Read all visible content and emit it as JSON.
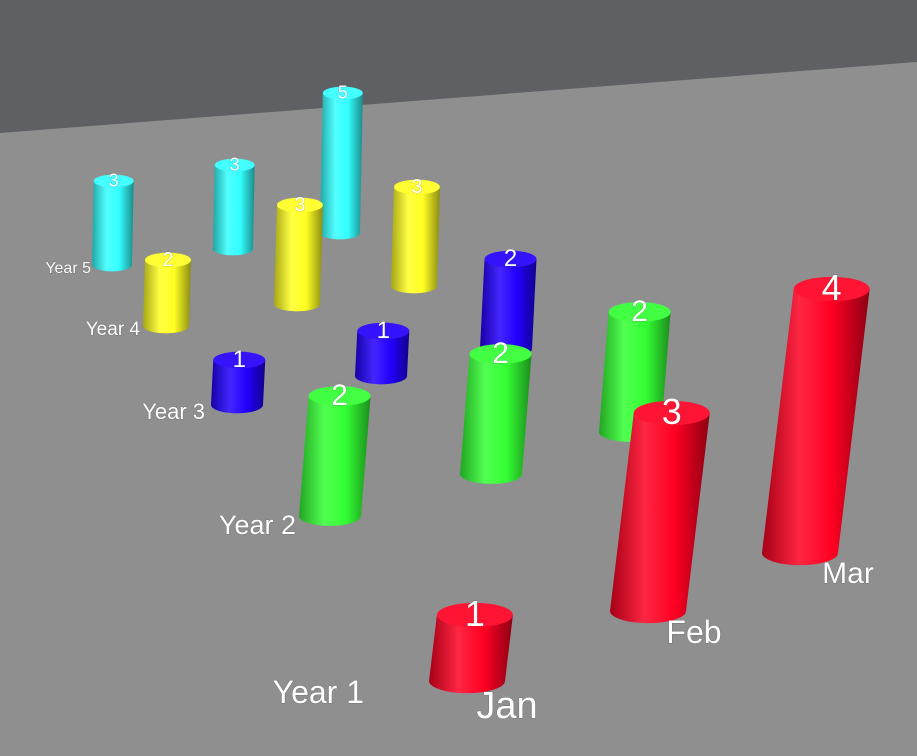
{
  "chart_data": {
    "type": "bar",
    "style": "3d-cylinder",
    "categories": [
      "Jan",
      "Feb",
      "Mar"
    ],
    "series": [
      {
        "name": "Year 1",
        "values": [
          1,
          3,
          4
        ],
        "color": "#ff0022"
      },
      {
        "name": "Year 2",
        "values": [
          2,
          2,
          2
        ],
        "color": "#33ff33"
      },
      {
        "name": "Year 3",
        "values": [
          1,
          1,
          2
        ],
        "color": "#2200ff"
      },
      {
        "name": "Year 4",
        "values": [
          2,
          3,
          3
        ],
        "color": "#ffff22"
      },
      {
        "name": "Year 5",
        "values": [
          3,
          3,
          5
        ],
        "color": "#33ffff"
      }
    ],
    "data_labels": true,
    "background": {
      "wall": "#5f6064",
      "floor": "#8f8f8f"
    }
  }
}
